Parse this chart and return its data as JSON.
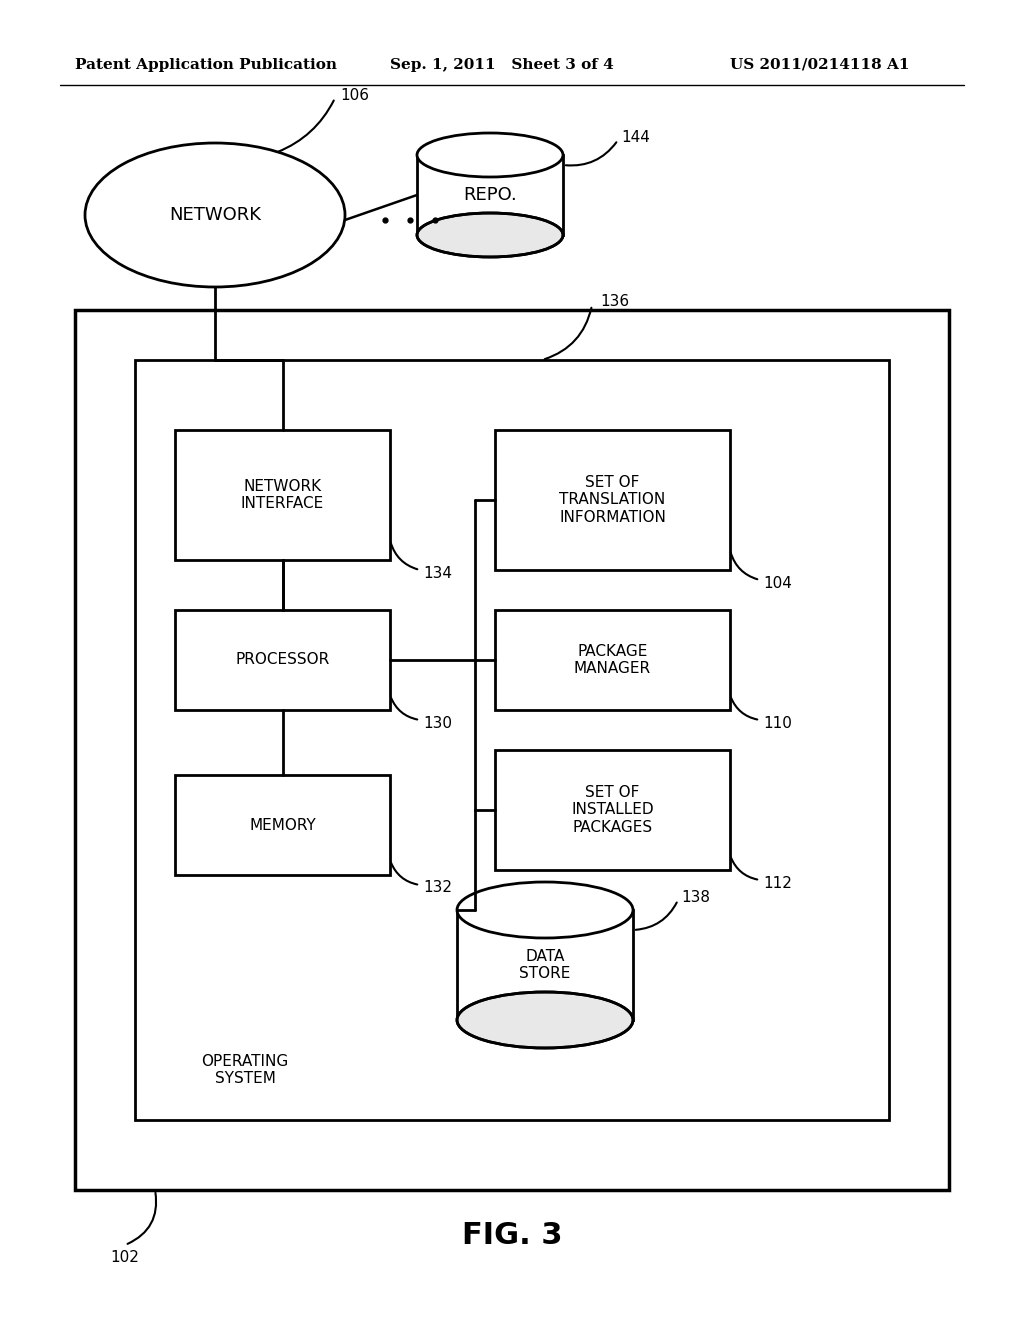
{
  "bg_color": "#ffffff",
  "header_left": "Patent Application Publication",
  "header_mid": "Sep. 1, 2011   Sheet 3 of 4",
  "header_right": "US 2011/0214118 A1",
  "fig_label": "FIG. 3",
  "network_label": "NETWORK",
  "network_ref": "106",
  "repo_label": "REPO.",
  "repo_ref": "144",
  "outer_box_ref": "102",
  "os_box_ref": "136",
  "os_label": "OPERATING\nSYSTEM",
  "net_interface_label": "NETWORK\nINTERFACE",
  "net_interface_ref": "134",
  "processor_label": "PROCESSOR",
  "processor_ref": "130",
  "memory_label": "MEMORY",
  "memory_ref": "132",
  "set_trans_label": "SET OF\nTRANSLATION\nINFORMATION",
  "set_trans_ref": "104",
  "pkg_mgr_label": "PACKAGE\nMANAGER",
  "pkg_mgr_ref": "110",
  "set_inst_label": "SET OF\nINSTALLED\nPACKAGES",
  "set_inst_ref": "112",
  "data_store_label": "DATA\nSTORE",
  "data_store_ref": "138"
}
